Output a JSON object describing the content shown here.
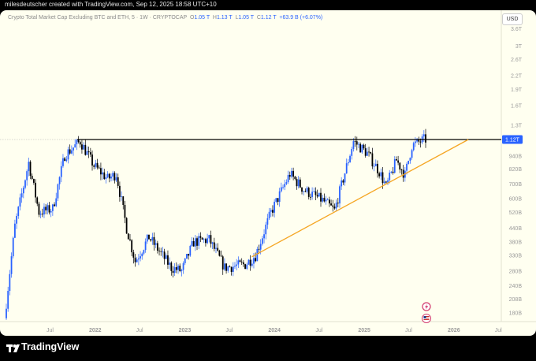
{
  "header": {
    "caption": "milesdeutscher created with TradingView.com, Sep 12, 2025 18:58 UTC+10"
  },
  "legend": {
    "symbol": "Crypto Total Market Cap Excluding BTC and ETH, 5 · 1W · CRYPTOCAP",
    "open_label": "O",
    "open": "1.05 T",
    "high_label": "H",
    "high": "1.13 T",
    "low_label": "L",
    "low": "1.05 T",
    "close_label": "C",
    "close": "1.12 T",
    "change": "+63.9 B (+6.07%)"
  },
  "currency": "USD",
  "brand": "TradingView",
  "colors": {
    "up": "#2962ff",
    "down": "#000000",
    "trendline": "#f5a623",
    "resistance": "#000000",
    "price_tag": "#2962ff"
  },
  "chart_data": {
    "type": "candlestick",
    "scale": "log",
    "interval": "1W",
    "y_ticks": [
      "3.6T",
      "3T",
      "2.6T",
      "2.2T",
      "1.9T",
      "1.6T",
      "1.3T",
      "940B",
      "820B",
      "700B",
      "600B",
      "520B",
      "440B",
      "380B",
      "330B",
      "280B",
      "240B",
      "208B",
      "180B"
    ],
    "x_ticks": [
      "Jul",
      "2022",
      "Jul",
      "2023",
      "Jul",
      "2024",
      "Jul",
      "2025",
      "Jul",
      "2026",
      "Jul"
    ],
    "last_price_label": "1.12T",
    "resistance_level": 1.12,
    "trendline": {
      "from": {
        "date": "2023-10",
        "value": 0.325
      },
      "to": {
        "date": "2026-03",
        "value": 1.12
      }
    },
    "price_path": [
      [
        "2021-01-04",
        0.17
      ],
      [
        "2021-02-15",
        0.45
      ],
      [
        "2021-04-12",
        0.88
      ],
      [
        "2021-05-24",
        0.52
      ],
      [
        "2021-07-19",
        0.54
      ],
      [
        "2021-09-06",
        0.95
      ],
      [
        "2021-11-08",
        1.1
      ],
      [
        "2022-01-03",
        0.85
      ],
      [
        "2022-02-28",
        0.74
      ],
      [
        "2022-04-04",
        0.78
      ],
      [
        "2022-05-16",
        0.44
      ],
      [
        "2022-06-20",
        0.31
      ],
      [
        "2022-08-15",
        0.4
      ],
      [
        "2022-11-14",
        0.29
      ],
      [
        "2022-12-26",
        0.28
      ],
      [
        "2023-02-13",
        0.38
      ],
      [
        "2023-04-17",
        0.39
      ],
      [
        "2023-06-19",
        0.29
      ],
      [
        "2023-09-11",
        0.3
      ],
      [
        "2023-10-23",
        0.33
      ],
      [
        "2023-12-25",
        0.52
      ],
      [
        "2024-03-11",
        0.78
      ],
      [
        "2024-05-06",
        0.66
      ],
      [
        "2024-07-22",
        0.59
      ],
      [
        "2024-09-09",
        0.53
      ],
      [
        "2024-11-25",
        1.1
      ],
      [
        "2025-01-20",
        0.97
      ],
      [
        "2025-03-10",
        0.8
      ],
      [
        "2025-04-07",
        0.68
      ],
      [
        "2025-05-19",
        0.9
      ],
      [
        "2025-06-23",
        0.77
      ],
      [
        "2025-07-21",
        1.05
      ],
      [
        "2025-09-08",
        1.12
      ]
    ]
  }
}
